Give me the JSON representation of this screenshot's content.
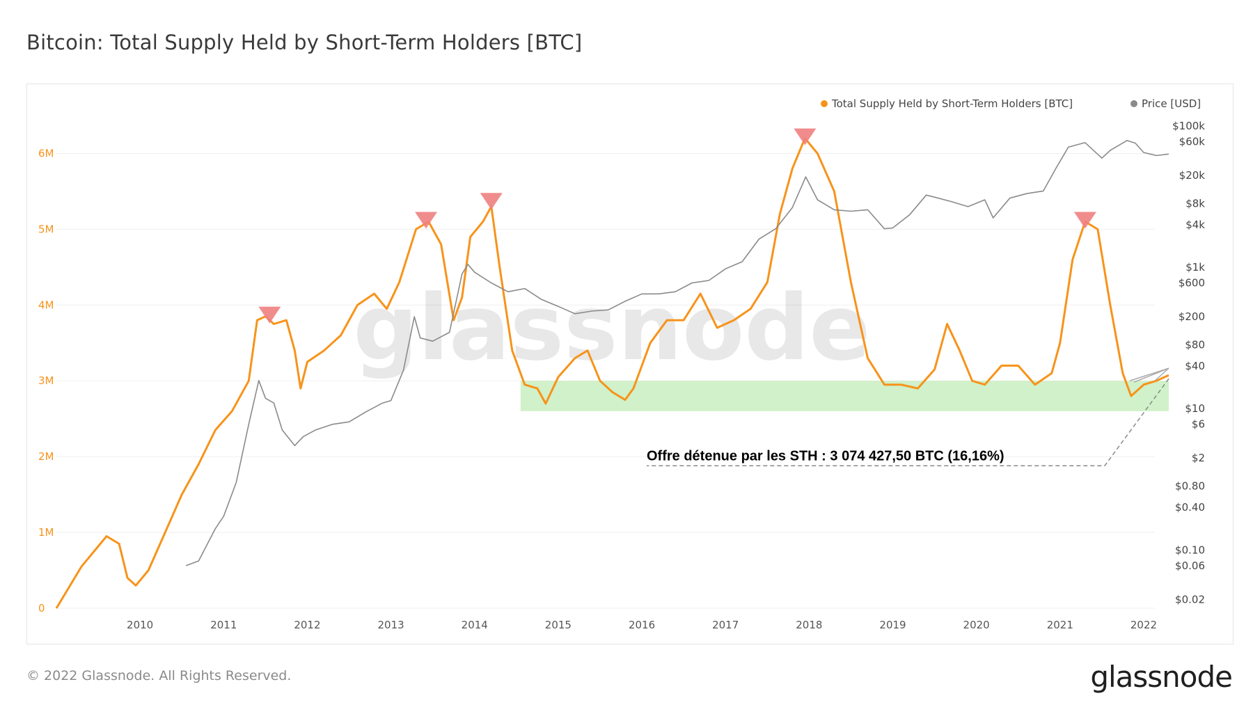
{
  "header": {
    "title": "Bitcoin: Total Supply Held by Short-Term Holders [BTC]"
  },
  "footer": {
    "copyright": "© 2022 Glassnode. All Rights Reserved.",
    "logo": "glassnode"
  },
  "watermark": "glassnode",
  "colors": {
    "sth": "#f7931a",
    "price": "#8a8a8a",
    "zone": "#c8efc0",
    "peak": "#f08080",
    "grid": "#efefef"
  },
  "chart_data": {
    "type": "line",
    "title": "Bitcoin: Total Supply Held by Short-Term Holders [BTC]",
    "xlim": [
      2009.0,
      2022.3
    ],
    "x_ticks": [
      "2010",
      "2011",
      "2012",
      "2013",
      "2014",
      "2015",
      "2016",
      "2017",
      "2018",
      "2019",
      "2020",
      "2021",
      "2022"
    ],
    "x_tick_values": [
      2010,
      2011,
      2012,
      2013,
      2014,
      2015,
      2016,
      2017,
      2018,
      2019,
      2020,
      2021,
      2022
    ],
    "y_left": {
      "label": "Total Supply Held by Short-Term Holders [BTC]",
      "range": [
        0,
        6500000
      ],
      "ticks": [
        "0",
        "1M",
        "2M",
        "3M",
        "4M",
        "5M",
        "6M"
      ],
      "tick_values": [
        0,
        1000000,
        2000000,
        3000000,
        4000000,
        5000000,
        6000000
      ]
    },
    "y_right": {
      "label": "Price [USD]",
      "scale": "log",
      "range": [
        0.015,
        140000
      ],
      "ticks": [
        "$0.02",
        "$0.06",
        "$0.10",
        "$0.40",
        "$0.80",
        "$2",
        "$6",
        "$10",
        "$40",
        "$80",
        "$200",
        "$600",
        "$1k",
        "$4k",
        "$8k",
        "$20k",
        "$60k",
        "$100k"
      ],
      "tick_values": [
        0.02,
        0.06,
        0.1,
        0.4,
        0.8,
        2,
        6,
        10,
        40,
        80,
        200,
        600,
        1000,
        4000,
        8000,
        20000,
        60000,
        100000
      ]
    },
    "legend": [
      {
        "label": "Total Supply Held by Short-Term Holders [BTC]",
        "color": "#f7931a"
      },
      {
        "label": "Price [USD]",
        "color": "#8a8a8a"
      }
    ],
    "series": [
      {
        "name": "Total Supply Held by Short-Term Holders [BTC]",
        "axis": "left",
        "x": [
          2009.0,
          2009.3,
          2009.6,
          2009.75,
          2009.85,
          2009.95,
          2010.1,
          2010.3,
          2010.5,
          2010.7,
          2010.9,
          2011.1,
          2011.3,
          2011.4,
          2011.5,
          2011.6,
          2011.75,
          2011.85,
          2011.92,
          2012.0,
          2012.2,
          2012.4,
          2012.6,
          2012.8,
          2012.95,
          2013.1,
          2013.3,
          2013.45,
          2013.6,
          2013.75,
          2013.85,
          2013.95,
          2014.1,
          2014.2,
          2014.3,
          2014.45,
          2014.6,
          2014.75,
          2014.85,
          2015.0,
          2015.2,
          2015.35,
          2015.5,
          2015.65,
          2015.8,
          2015.9,
          2016.1,
          2016.3,
          2016.5,
          2016.7,
          2016.9,
          2017.1,
          2017.3,
          2017.5,
          2017.65,
          2017.8,
          2017.95,
          2018.1,
          2018.3,
          2018.5,
          2018.7,
          2018.9,
          2019.1,
          2019.3,
          2019.5,
          2019.65,
          2019.8,
          2019.95,
          2020.1,
          2020.3,
          2020.5,
          2020.7,
          2020.9,
          2021.0,
          2021.15,
          2021.3,
          2021.45,
          2021.6,
          2021.75,
          2021.85,
          2022.0,
          2022.15,
          2022.3
        ],
        "values": [
          0,
          550000,
          950000,
          850000,
          400000,
          300000,
          500000,
          1000000,
          1500000,
          1900000,
          2350000,
          2600000,
          3000000,
          3800000,
          3850000,
          3750000,
          3800000,
          3400000,
          2900000,
          3250000,
          3400000,
          3600000,
          4000000,
          4150000,
          3950000,
          4300000,
          5000000,
          5100000,
          4800000,
          3800000,
          4100000,
          4900000,
          5100000,
          5300000,
          4500000,
          3400000,
          2950000,
          2900000,
          2700000,
          3050000,
          3300000,
          3400000,
          3000000,
          2850000,
          2750000,
          2900000,
          3500000,
          3800000,
          3800000,
          4150000,
          3700000,
          3800000,
          3950000,
          4300000,
          5200000,
          5800000,
          6200000,
          6000000,
          5500000,
          4300000,
          3300000,
          2950000,
          2950000,
          2900000,
          3150000,
          3750000,
          3400000,
          3000000,
          2950000,
          3200000,
          3200000,
          2950000,
          3100000,
          3500000,
          4600000,
          5100000,
          5000000,
          4000000,
          3100000,
          2800000,
          2950000,
          3000000,
          3075000
        ]
      },
      {
        "name": "Price [USD]",
        "axis": "right",
        "x": [
          2010.55,
          2010.7,
          2010.9,
          2011.0,
          2011.15,
          2011.3,
          2011.42,
          2011.5,
          2011.6,
          2011.7,
          2011.85,
          2011.95,
          2012.1,
          2012.3,
          2012.5,
          2012.7,
          2012.9,
          2013.0,
          2013.15,
          2013.28,
          2013.35,
          2013.5,
          2013.7,
          2013.85,
          2013.92,
          2014.0,
          2014.2,
          2014.4,
          2014.6,
          2014.8,
          2015.0,
          2015.2,
          2015.4,
          2015.6,
          2015.8,
          2016.0,
          2016.2,
          2016.4,
          2016.6,
          2016.8,
          2017.0,
          2017.2,
          2017.4,
          2017.6,
          2017.8,
          2017.96,
          2018.1,
          2018.3,
          2018.5,
          2018.7,
          2018.9,
          2019.0,
          2019.2,
          2019.4,
          2019.5,
          2019.7,
          2019.9,
          2020.1,
          2020.2,
          2020.4,
          2020.6,
          2020.8,
          2020.95,
          2021.1,
          2021.3,
          2021.5,
          2021.6,
          2021.8,
          2021.9,
          2022.0,
          2022.15,
          2022.3
        ],
        "values": [
          0.06,
          0.07,
          0.2,
          0.3,
          0.9,
          6,
          25,
          14,
          12,
          5,
          3,
          4,
          5,
          6,
          6.5,
          9,
          12,
          13,
          35,
          200,
          100,
          90,
          120,
          800,
          1100,
          850,
          600,
          450,
          500,
          350,
          280,
          220,
          240,
          250,
          330,
          420,
          420,
          450,
          600,
          650,
          950,
          1200,
          2500,
          3500,
          7000,
          19000,
          9000,
          6500,
          6200,
          6500,
          3500,
          3600,
          5500,
          10500,
          9800,
          8500,
          7200,
          9000,
          5000,
          9500,
          11000,
          12000,
          25000,
          50000,
          58000,
          35000,
          45000,
          62000,
          57000,
          42000,
          38000,
          40000
        ]
      }
    ],
    "peak_markers": [
      {
        "x": 2011.55,
        "value": 3850000
      },
      {
        "x": 2013.42,
        "value": 5100000
      },
      {
        "x": 2014.2,
        "value": 5350000
      },
      {
        "x": 2017.95,
        "value": 6200000
      },
      {
        "x": 2021.3,
        "value": 5100000
      }
    ],
    "highlight_band": {
      "x_range": [
        2014.55,
        2022.3
      ],
      "y_range": [
        2600000,
        3000000
      ]
    },
    "annotation": {
      "text": "Offre détenue par les STH : 3 074 427,50 BTC (16,16%)",
      "x": 2022.3,
      "value": 3074427.5
    }
  }
}
